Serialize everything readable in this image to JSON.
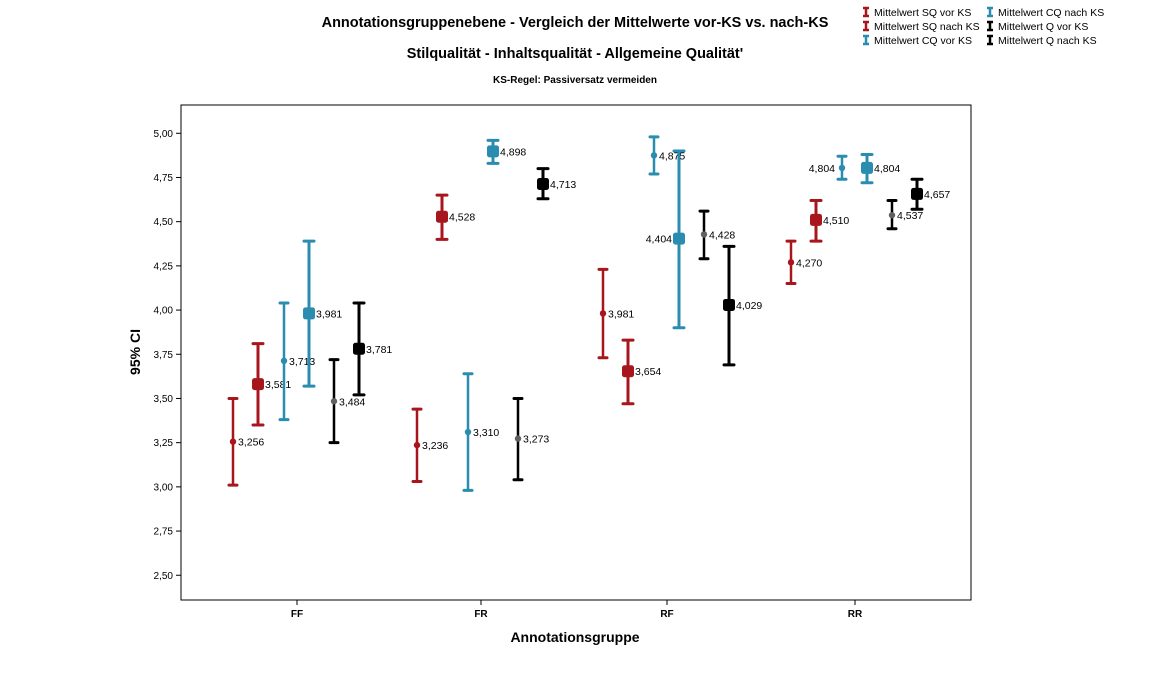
{
  "chart_data": {
    "type": "errorbar",
    "title": "Annotationsgruppenebene - Vergleich der Mittelwerte vor-KS vs. nach-KS",
    "subtitle": "Stilqualität - Inhaltsqualität - Allgemeine Qualität'",
    "subsubtitle": "KS-Regel: Passiversatz vermeiden",
    "xlabel": "Annotationsgruppe",
    "ylabel": "95% CI",
    "categories": [
      "FF",
      "FR",
      "RF",
      "RR"
    ],
    "ylim": [
      2.36,
      5.16
    ],
    "yticks": [
      "2,50",
      "2,75",
      "3,00",
      "3,25",
      "3,50",
      "3,75",
      "4,00",
      "4,25",
      "4,50",
      "4,75",
      "5,00"
    ],
    "ytick_values": [
      2.5,
      2.75,
      3.0,
      3.25,
      3.5,
      3.75,
      4.0,
      4.25,
      4.5,
      4.75,
      5.0
    ],
    "grid": false,
    "legend_position": "top-right",
    "series": [
      {
        "name": "Mittelwert SQ vor KS",
        "color": "#a8161d",
        "marker": "small",
        "means": [
          3.256,
          3.236,
          3.981,
          4.27
        ],
        "labels": [
          "3,256",
          "3,236",
          "3,981",
          "4,270"
        ],
        "lower": [
          3.01,
          3.03,
          3.73,
          4.15
        ],
        "upper": [
          3.5,
          3.44,
          4.23,
          4.39
        ]
      },
      {
        "name": "Mittelwert SQ nach KS",
        "color": "#a8161d",
        "marker": "large",
        "means": [
          3.581,
          4.528,
          3.654,
          4.51
        ],
        "labels": [
          "3,581",
          "4,528",
          "3,654",
          "4,510"
        ],
        "lower": [
          3.35,
          4.4,
          3.47,
          4.39
        ],
        "upper": [
          3.81,
          4.65,
          3.83,
          4.62
        ]
      },
      {
        "name": "Mittelwert CQ vor KS",
        "color": "#2a8db0",
        "marker": "small",
        "means": [
          3.713,
          3.31,
          4.875,
          4.804
        ],
        "labels": [
          "3,713",
          "3,310",
          "4,875",
          "4,804"
        ],
        "lower": [
          3.38,
          2.98,
          4.77,
          4.74
        ],
        "upper": [
          4.04,
          3.64,
          4.98,
          4.87
        ]
      },
      {
        "name": "Mittelwert CQ nach KS",
        "color": "#2a8db0",
        "marker": "large",
        "means": [
          3.981,
          4.898,
          4.404,
          4.804
        ],
        "labels": [
          "3,981",
          "4,898",
          "4,404",
          "4,804"
        ],
        "lower": [
          3.57,
          4.83,
          3.9,
          4.72
        ],
        "upper": [
          4.39,
          4.96,
          4.9,
          4.88
        ]
      },
      {
        "name": "Mittelwert Q vor KS",
        "color": "#000000",
        "marker": "small",
        "means": [
          3.484,
          3.273,
          4.428,
          4.537
        ],
        "labels": [
          "3,484",
          "3,273",
          "4,428",
          "4,537"
        ],
        "lower": [
          3.25,
          3.04,
          4.29,
          4.46
        ],
        "upper": [
          3.72,
          3.5,
          4.56,
          4.62
        ]
      },
      {
        "name": "Mittelwert Q nach KS",
        "color": "#000000",
        "marker": "large",
        "means": [
          3.781,
          4.713,
          4.029,
          4.657
        ],
        "labels": [
          "3,781",
          "4,713",
          "4,029",
          "4,657"
        ],
        "lower": [
          3.52,
          4.63,
          3.69,
          4.57
        ],
        "upper": [
          4.04,
          4.8,
          4.36,
          4.74
        ]
      }
    ]
  }
}
